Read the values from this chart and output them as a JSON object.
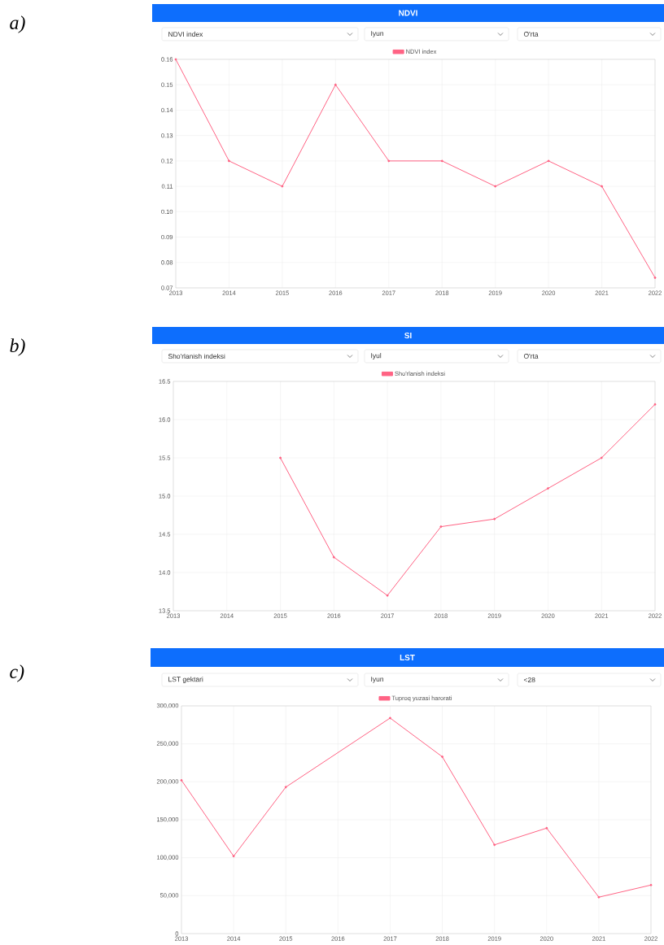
{
  "chart_data": [
    {
      "type": "line",
      "title": "NDVI",
      "annotations": [
        "a)",
        "NDVI index",
        "Iyun",
        "O'rta"
      ],
      "categories": [
        "2013",
        "2014",
        "2015",
        "2016",
        "2017",
        "2018",
        "2019",
        "2020",
        "2021",
        "2022"
      ],
      "series": [
        {
          "name": "NDVI index",
          "color": "#ff6384",
          "values": [
            0.16,
            0.12,
            0.11,
            0.15,
            0.12,
            0.12,
            0.11,
            0.12,
            0.11,
            0.074
          ]
        }
      ],
      "ylim": [
        0.07,
        0.16
      ],
      "yticks": [
        {
          "value": 0.07,
          "label": "0.07"
        },
        {
          "value": 0.08,
          "label": "0.08"
        },
        {
          "value": 0.09,
          "label": "0.09"
        },
        {
          "value": 0.1,
          "label": "0.10"
        },
        {
          "value": 0.11,
          "label": "0.11"
        },
        {
          "value": 0.12,
          "label": "0.12"
        },
        {
          "value": 0.13,
          "label": "0.13"
        },
        {
          "value": 0.14,
          "label": "0.14"
        },
        {
          "value": 0.15,
          "label": "0.15"
        },
        {
          "value": 0.16,
          "label": "0.16"
        }
      ],
      "grid": true,
      "legend": "top",
      "marker": "circle",
      "line_style": "solid"
    },
    {
      "type": "line",
      "title": "SI",
      "annotations": [
        "b)",
        "Sho'rlanish indeksi",
        "Iyul",
        "O'rta"
      ],
      "categories": [
        "2013",
        "2014",
        "2015",
        "2016",
        "2017",
        "2018",
        "2019",
        "2020",
        "2021",
        "2022"
      ],
      "series": [
        {
          "name": "Sho'rlanish indeksi",
          "color": "#ff6384",
          "values": [
            null,
            null,
            15.5,
            14.2,
            13.7,
            14.6,
            14.7,
            15.1,
            15.5,
            16.2
          ]
        }
      ],
      "ylim": [
        13.5,
        16.5
      ],
      "yticks": [
        13.5,
        {
          "value": 14,
          "label": "14.0"
        },
        14.5,
        {
          "value": 15,
          "label": "15.0"
        },
        15.5,
        {
          "value": 16,
          "label": "16.0"
        },
        16.5
      ],
      "grid": true,
      "legend": "top",
      "marker": "circle",
      "line_style": "solid"
    },
    {
      "type": "line",
      "title": "LST",
      "annotations": [
        "c)",
        "LST gektari",
        "Iyun",
        "<28"
      ],
      "categories": [
        "2013",
        "2014",
        "2015",
        "2016",
        "2017",
        "2018",
        "2019",
        "2020",
        "2021",
        "2022"
      ],
      "series": [
        {
          "name": "Tuproq yuzasi harorati",
          "color": "#ff6384",
          "values": [
            202000,
            102000,
            193000,
            null,
            284000,
            233000,
            117000,
            139000,
            48000,
            64000
          ]
        }
      ],
      "ylim": [
        0,
        300000
      ],
      "yticks": [
        0,
        {
          "value": 50000,
          "label": "50,000"
        },
        {
          "value": 100000,
          "label": "100,000"
        },
        {
          "value": 150000,
          "label": "150,000"
        },
        {
          "value": 200000,
          "label": "200,000"
        },
        {
          "value": 250000,
          "label": "250,000"
        },
        {
          "value": 300000,
          "label": "300,000"
        }
      ],
      "grid": true,
      "legend": "top",
      "marker": "circle",
      "line_style": "solid"
    }
  ]
}
